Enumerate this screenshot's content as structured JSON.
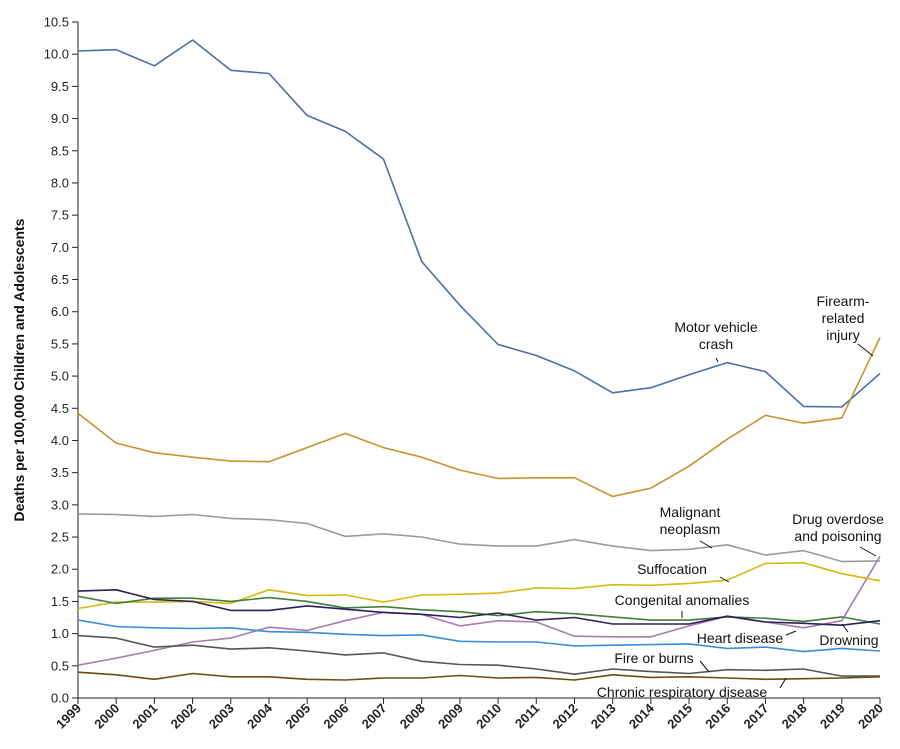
{
  "chart_data": {
    "type": "line",
    "ylabel": "Deaths per 100,000 Children and Adolescents",
    "xlabel": "",
    "ylim": [
      0,
      10.5
    ],
    "y_ticks": [
      "0.0",
      "0.5",
      "1.0",
      "1.5",
      "2.0",
      "2.5",
      "3.0",
      "3.5",
      "4.0",
      "4.5",
      "5.0",
      "5.5",
      "6.0",
      "6.5",
      "7.0",
      "7.5",
      "8.0",
      "8.5",
      "9.0",
      "9.5",
      "10.0",
      "10.5"
    ],
    "x": [
      "1999",
      "2000",
      "2001",
      "2002",
      "2003",
      "2004",
      "2005",
      "2006",
      "2007",
      "2008",
      "2009",
      "2010",
      "2011",
      "2012",
      "2013",
      "2014",
      "2015",
      "2016",
      "2017",
      "2018",
      "2019",
      "2020"
    ],
    "grid": false,
    "series": [
      {
        "name": "Motor vehicle crash",
        "color": "#4a6fa5",
        "values": [
          10.05,
          10.07,
          9.82,
          10.22,
          9.75,
          9.7,
          9.05,
          8.8,
          8.37,
          6.78,
          6.1,
          5.49,
          5.32,
          5.08,
          4.74,
          4.82,
          5.02,
          5.21,
          5.07,
          4.53,
          4.52,
          5.04
        ]
      },
      {
        "name": "Firearm-related injury",
        "color": "#c8922f",
        "values": [
          4.42,
          3.96,
          3.81,
          3.74,
          3.68,
          3.67,
          3.89,
          4.11,
          3.89,
          3.74,
          3.54,
          3.41,
          3.42,
          3.42,
          3.13,
          3.26,
          3.6,
          4.02,
          4.39,
          4.27,
          4.35,
          5.6
        ]
      },
      {
        "name": "Malignant neoplasm",
        "color": "#9a9a9a",
        "values": [
          2.86,
          2.85,
          2.82,
          2.85,
          2.79,
          2.77,
          2.71,
          2.51,
          2.55,
          2.5,
          2.39,
          2.36,
          2.36,
          2.46,
          2.36,
          2.29,
          2.31,
          2.38,
          2.22,
          2.29,
          2.12,
          2.13
        ]
      },
      {
        "name": "Drug overdose and poisoning",
        "color": "#a97ab0",
        "values": [
          0.51,
          0.62,
          0.74,
          0.87,
          0.93,
          1.1,
          1.05,
          1.2,
          1.33,
          1.3,
          1.12,
          1.2,
          1.18,
          0.96,
          0.95,
          0.95,
          1.12,
          1.27,
          1.18,
          1.09,
          1.2,
          2.2
        ]
      },
      {
        "name": "Suffocation",
        "color": "#d6b80f",
        "values": [
          1.39,
          1.49,
          1.49,
          1.5,
          1.47,
          1.68,
          1.59,
          1.6,
          1.49,
          1.6,
          1.61,
          1.63,
          1.71,
          1.7,
          1.76,
          1.75,
          1.78,
          1.83,
          2.09,
          2.1,
          1.93,
          1.82
        ]
      },
      {
        "name": "Congenital anomalies",
        "color": "#3f7f3a",
        "values": [
          1.58,
          1.47,
          1.55,
          1.55,
          1.5,
          1.56,
          1.5,
          1.4,
          1.42,
          1.37,
          1.34,
          1.28,
          1.34,
          1.31,
          1.26,
          1.21,
          1.21,
          1.26,
          1.24,
          1.19,
          1.26,
          1.15
        ]
      },
      {
        "name": "Drowning",
        "color": "#2c1e5a",
        "values": [
          1.66,
          1.68,
          1.53,
          1.5,
          1.36,
          1.36,
          1.43,
          1.38,
          1.33,
          1.3,
          1.25,
          1.32,
          1.21,
          1.25,
          1.15,
          1.15,
          1.15,
          1.27,
          1.18,
          1.16,
          1.13,
          1.2
        ]
      },
      {
        "name": "Heart disease",
        "color": "#3b8ed8",
        "values": [
          1.21,
          1.11,
          1.09,
          1.08,
          1.09,
          1.03,
          1.02,
          0.99,
          0.97,
          0.98,
          0.88,
          0.87,
          0.87,
          0.81,
          0.82,
          0.83,
          0.84,
          0.77,
          0.79,
          0.72,
          0.77,
          0.73
        ]
      },
      {
        "name": "Fire or burns",
        "color": "#555555",
        "values": [
          0.97,
          0.93,
          0.79,
          0.82,
          0.76,
          0.78,
          0.73,
          0.67,
          0.7,
          0.57,
          0.52,
          0.51,
          0.45,
          0.37,
          0.45,
          0.41,
          0.38,
          0.44,
          0.43,
          0.45,
          0.34,
          0.34
        ]
      },
      {
        "name": "Chronic respiratory disease",
        "color": "#6b4d10",
        "values": [
          0.4,
          0.36,
          0.29,
          0.38,
          0.33,
          0.33,
          0.29,
          0.28,
          0.31,
          0.31,
          0.35,
          0.31,
          0.32,
          0.28,
          0.36,
          0.32,
          0.33,
          0.31,
          0.29,
          0.3,
          0.31,
          0.33
        ]
      }
    ],
    "annotations": [
      {
        "lines": [
          "Motor vehicle",
          "crash"
        ]
      },
      {
        "lines": [
          "Firearm-",
          "related",
          "injury"
        ]
      },
      {
        "lines": [
          "Malignant",
          "neoplasm"
        ]
      },
      {
        "lines": [
          "Drug overdose",
          "and poisoning"
        ]
      },
      {
        "lines": [
          "Suffocation"
        ]
      },
      {
        "lines": [
          "Congenital anomalies"
        ]
      },
      {
        "lines": [
          "Heart disease"
        ]
      },
      {
        "lines": [
          "Drowning"
        ]
      },
      {
        "lines": [
          "Fire or burns"
        ]
      },
      {
        "lines": [
          "Chronic respiratory disease"
        ]
      }
    ]
  }
}
